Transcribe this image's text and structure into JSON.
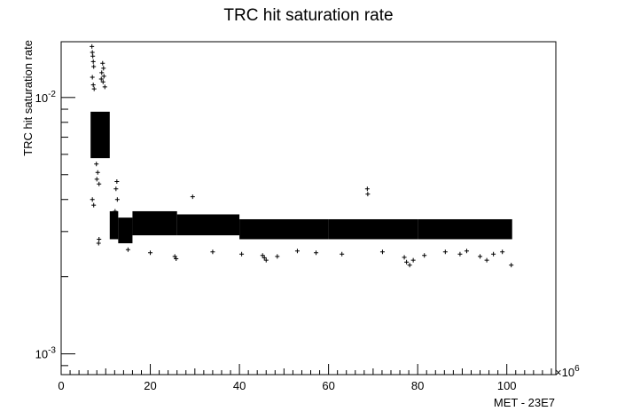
{
  "chart_data": {
    "type": "scatter",
    "title": "TRC hit saturation rate",
    "xlabel": "MET - 23E7",
    "ylabel": "TRC hit saturation rate",
    "x_multiplier_label": "×10",
    "x_multiplier_exponent": "6",
    "xlim": [
      0,
      111
    ],
    "ylim": [
      0.00083,
      0.0165
    ],
    "y_scale": "log",
    "grid": false,
    "marker": "+",
    "x_ticks": [
      {
        "value": 0,
        "label": "0"
      },
      {
        "value": 20,
        "label": "20"
      },
      {
        "value": 40,
        "label": "40"
      },
      {
        "value": 60,
        "label": "60"
      },
      {
        "value": 80,
        "label": "80"
      },
      {
        "value": 100,
        "label": "100"
      }
    ],
    "y_ticks": [
      {
        "value": 0.01,
        "label": "10",
        "exp": "-2"
      },
      {
        "value": 0.001,
        "label": "10",
        "exp": "-3"
      }
    ],
    "points": [
      [
        6.9,
        0.0158
      ],
      [
        7.0,
        0.015
      ],
      [
        7.1,
        0.0145
      ],
      [
        7.2,
        0.0138
      ],
      [
        7.3,
        0.0132
      ],
      [
        7.0,
        0.012
      ],
      [
        7.2,
        0.0112
      ],
      [
        7.4,
        0.0108
      ],
      [
        9.3,
        0.0136
      ],
      [
        9.5,
        0.013
      ],
      [
        9.1,
        0.0125
      ],
      [
        9.6,
        0.0121
      ],
      [
        9.0,
        0.0118
      ],
      [
        9.4,
        0.0115
      ],
      [
        9.8,
        0.011
      ],
      [
        7.0,
        0.004
      ],
      [
        7.3,
        0.0038
      ],
      [
        8.0,
        0.0048
      ],
      [
        8.5,
        0.0046
      ],
      [
        8.2,
        0.0051
      ],
      [
        7.9,
        0.0055
      ],
      [
        8.8,
        0.006
      ],
      [
        9.2,
        0.0065
      ],
      [
        12.5,
        0.0047
      ],
      [
        12.3,
        0.0044
      ],
      [
        12.6,
        0.004
      ],
      [
        12.1,
        0.0036
      ],
      [
        8.5,
        0.0028
      ],
      [
        8.4,
        0.0027
      ],
      [
        29.5,
        0.0041
      ],
      [
        68.7,
        0.0044
      ],
      [
        68.8,
        0.0042
      ],
      [
        15.0,
        0.00255
      ],
      [
        20.0,
        0.00248
      ],
      [
        25.5,
        0.0024
      ],
      [
        25.8,
        0.00235
      ],
      [
        34.0,
        0.0025
      ],
      [
        40.5,
        0.00245
      ],
      [
        45.2,
        0.00242
      ],
      [
        45.6,
        0.00237
      ],
      [
        46.0,
        0.00232
      ],
      [
        48.5,
        0.0024
      ],
      [
        53.0,
        0.00252
      ],
      [
        57.2,
        0.00248
      ],
      [
        63.0,
        0.00245
      ],
      [
        72.1,
        0.0025
      ],
      [
        77.0,
        0.00238
      ],
      [
        77.5,
        0.00228
      ],
      [
        78.2,
        0.00222
      ],
      [
        79.0,
        0.00232
      ],
      [
        81.5,
        0.00242
      ],
      [
        86.2,
        0.0025
      ],
      [
        89.5,
        0.00245
      ],
      [
        94.0,
        0.0024
      ],
      [
        95.5,
        0.00232
      ],
      [
        97.0,
        0.00245
      ],
      [
        101.0,
        0.00222
      ],
      [
        99.0,
        0.0025
      ],
      [
        91.0,
        0.00252
      ]
    ],
    "bands": [
      {
        "x_start": 6.6,
        "x_end": 10.9,
        "y_low": 0.0058,
        "y_high": 0.0088
      },
      {
        "x_start": 10.9,
        "x_end": 12.8,
        "y_low": 0.0028,
        "y_high": 0.0036
      },
      {
        "x_start": 12.8,
        "x_end": 16.0,
        "y_low": 0.0027,
        "y_high": 0.0034
      },
      {
        "x_start": 16.0,
        "x_end": 26.0,
        "y_low": 0.0029,
        "y_high": 0.0036
      },
      {
        "x_start": 26.0,
        "x_end": 40.0,
        "y_low": 0.0029,
        "y_high": 0.0035
      },
      {
        "x_start": 40.0,
        "x_end": 60.0,
        "y_low": 0.0028,
        "y_high": 0.00335
      },
      {
        "x_start": 60.0,
        "x_end": 80.0,
        "y_low": 0.0028,
        "y_high": 0.00335
      },
      {
        "x_start": 80.0,
        "x_end": 101.2,
        "y_low": 0.0028,
        "y_high": 0.00335
      }
    ]
  }
}
